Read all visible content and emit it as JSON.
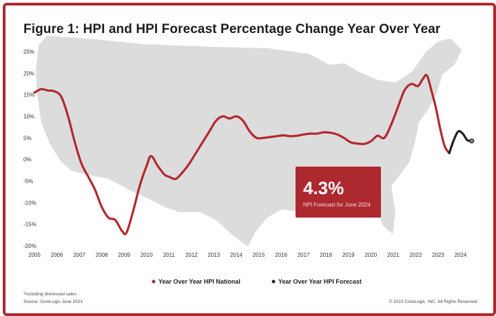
{
  "title": "Figure 1: HPI and HPI Forecast Percentage Change Year Over Year",
  "colors": {
    "national": "#b3282e",
    "forecast": "#1f1f1f",
    "map": "#dcdcdc",
    "frame": "#b02a30",
    "callout": "#ae2830"
  },
  "callout": {
    "value": "4.3%",
    "label": "HPI Forecast for June 2024"
  },
  "footnotes": {
    "note": "*Including distressed sales",
    "source": "Source: CoreLogic June 2023",
    "copyright": "© 2023 CoreLogic, INC. All Rights Reserved."
  },
  "chart_data": {
    "type": "line",
    "title": "Figure 1: HPI and HPI Forecast Percentage Change Year Over Year",
    "xlabel": "",
    "ylabel": "",
    "xlim": [
      2005,
      2024.6
    ],
    "ylim": [
      -20,
      25
    ],
    "y_ticks": [
      {
        "v": 25,
        "label": "25%"
      },
      {
        "v": 20,
        "label": "20%"
      },
      {
        "v": 15,
        "label": "15%"
      },
      {
        "v": 10,
        "label": "10%"
      },
      {
        "v": 5,
        "label": "5%"
      },
      {
        "v": 0,
        "label": "0%"
      },
      {
        "v": -5,
        "label": "-5%"
      },
      {
        "v": -10,
        "label": "-10%"
      },
      {
        "v": -15,
        "label": "-15%"
      },
      {
        "v": -20,
        "label": "-20%"
      }
    ],
    "x_ticks": [
      {
        "v": 2005,
        "label": "2005"
      },
      {
        "v": 2006,
        "label": "2006"
      },
      {
        "v": 2007,
        "label": "2007"
      },
      {
        "v": 2008,
        "label": "2008"
      },
      {
        "v": 2009,
        "label": "2009"
      },
      {
        "v": 2010,
        "label": "2010"
      },
      {
        "v": 2011,
        "label": "2011"
      },
      {
        "v": 2012,
        "label": "2012"
      },
      {
        "v": 2013,
        "label": "2013"
      },
      {
        "v": 2014,
        "label": "2014"
      },
      {
        "v": 2015,
        "label": "2015"
      },
      {
        "v": 2016,
        "label": "2016"
      },
      {
        "v": 2017,
        "label": "2017"
      },
      {
        "v": 2018,
        "label": "2018"
      },
      {
        "v": 2019,
        "label": "2019"
      },
      {
        "v": 2020,
        "label": "2020"
      },
      {
        "v": 2021,
        "label": "2021"
      },
      {
        "v": 2022,
        "label": "2022"
      },
      {
        "v": 2023,
        "label": "2023"
      },
      {
        "v": 2024,
        "label": "2024"
      }
    ],
    "legend_position": "bottom-center",
    "grid": false,
    "series": [
      {
        "name": "Year Over Year HPI National",
        "x": [
          2005.0,
          2005.3,
          2005.6,
          2005.9,
          2006.2,
          2006.5,
          2006.8,
          2007.1,
          2007.4,
          2007.7,
          2008.0,
          2008.3,
          2008.6,
          2008.9,
          2009.1,
          2009.4,
          2009.7,
          2010.0,
          2010.2,
          2010.5,
          2010.8,
          2011.0,
          2011.3,
          2011.6,
          2011.9,
          2012.2,
          2012.5,
          2012.8,
          2013.1,
          2013.4,
          2013.7,
          2014.0,
          2014.3,
          2014.6,
          2014.9,
          2015.2,
          2015.5,
          2015.8,
          2016.1,
          2016.4,
          2016.7,
          2017.0,
          2017.3,
          2017.6,
          2017.9,
          2018.2,
          2018.5,
          2018.8,
          2019.1,
          2019.4,
          2019.7,
          2020.0,
          2020.3,
          2020.6,
          2020.9,
          2021.2,
          2021.5,
          2021.8,
          2022.1,
          2022.3,
          2022.5,
          2022.7,
          2022.9,
          2023.1,
          2023.3,
          2023.5
        ],
        "y": [
          15.5,
          16.3,
          16.0,
          15.8,
          14.5,
          10.0,
          4.0,
          -1.0,
          -4.0,
          -7.0,
          -11.0,
          -13.5,
          -14.0,
          -16.5,
          -17.0,
          -12.0,
          -6.0,
          -1.5,
          0.8,
          -1.5,
          -3.5,
          -4.0,
          -4.5,
          -3.0,
          -1.0,
          1.5,
          4.0,
          6.5,
          9.0,
          10.0,
          9.5,
          10.0,
          9.0,
          6.5,
          5.0,
          5.0,
          5.2,
          5.4,
          5.6,
          5.4,
          5.5,
          5.8,
          6.0,
          6.0,
          6.3,
          6.2,
          5.8,
          5.0,
          4.0,
          3.7,
          3.6,
          4.2,
          5.5,
          5.0,
          8.0,
          12.0,
          16.0,
          17.5,
          17.0,
          18.5,
          19.5,
          16.0,
          12.0,
          7.0,
          3.0,
          1.5
        ]
      },
      {
        "name": "Year Over Year HPI Forecast",
        "x": [
          2023.5,
          2023.7,
          2023.9,
          2024.1,
          2024.3,
          2024.5
        ],
        "y": [
          1.5,
          4.5,
          6.5,
          6.0,
          4.5,
          4.3
        ]
      }
    ]
  }
}
